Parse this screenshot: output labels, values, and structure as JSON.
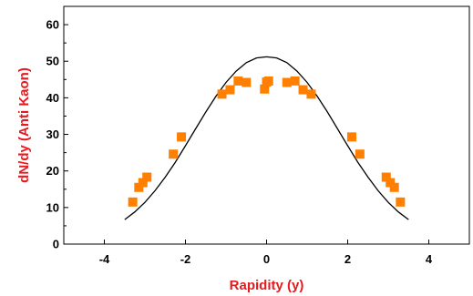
{
  "chart_data": {
    "type": "scatter",
    "xlabel": "Rapidity (y)",
    "ylabel": "dN/dy (Anti Kaon)",
    "xlim": [
      -5,
      5
    ],
    "ylim": [
      0,
      65
    ],
    "x_ticks": [
      "-4",
      "-2",
      "0",
      "2",
      "4"
    ],
    "y_ticks": [
      "0",
      "10",
      "20",
      "30",
      "40",
      "50",
      "60"
    ],
    "grid": false,
    "legend": "none",
    "axis_title_color": "#e8191e",
    "series": [
      {
        "type": "scatter",
        "marker": "square",
        "color": "#ff7f00",
        "points": [
          [
            -3.3,
            11.5
          ],
          [
            -3.15,
            15.5
          ],
          [
            -3.05,
            16.8
          ],
          [
            -2.95,
            18.3
          ],
          [
            -2.3,
            24.6
          ],
          [
            -2.1,
            29.3
          ],
          [
            -1.1,
            41.0
          ],
          [
            -0.9,
            42.2
          ],
          [
            -0.7,
            44.6
          ],
          [
            -0.5,
            44.2
          ],
          [
            -0.05,
            42.4
          ],
          [
            0.0,
            44.3
          ],
          [
            0.05,
            44.6
          ],
          [
            0.5,
            44.2
          ],
          [
            0.7,
            44.6
          ],
          [
            0.9,
            42.2
          ],
          [
            1.1,
            41.0
          ],
          [
            2.1,
            29.3
          ],
          [
            2.3,
            24.6
          ],
          [
            2.95,
            18.3
          ],
          [
            3.05,
            16.8
          ],
          [
            3.15,
            15.5
          ],
          [
            3.3,
            11.5
          ]
        ]
      },
      {
        "type": "line",
        "color": "#000000",
        "x": [
          -3.5,
          -3.25,
          -3.0,
          -2.75,
          -2.5,
          -2.25,
          -2.0,
          -1.75,
          -1.5,
          -1.25,
          -1.0,
          -0.75,
          -0.5,
          -0.25,
          0.0,
          0.25,
          0.5,
          0.75,
          1.0,
          1.25,
          1.5,
          1.75,
          2.0,
          2.25,
          2.5,
          2.75,
          3.0,
          3.25,
          3.5
        ],
        "y": [
          6.7,
          8.8,
          11.4,
          14.6,
          18.3,
          22.4,
          26.9,
          31.5,
          36.1,
          40.4,
          44.2,
          47.3,
          49.6,
          50.9,
          51.2,
          50.9,
          49.6,
          47.3,
          44.2,
          40.4,
          36.1,
          31.5,
          26.9,
          22.4,
          18.3,
          14.6,
          11.4,
          8.8,
          6.7
        ]
      }
    ]
  }
}
